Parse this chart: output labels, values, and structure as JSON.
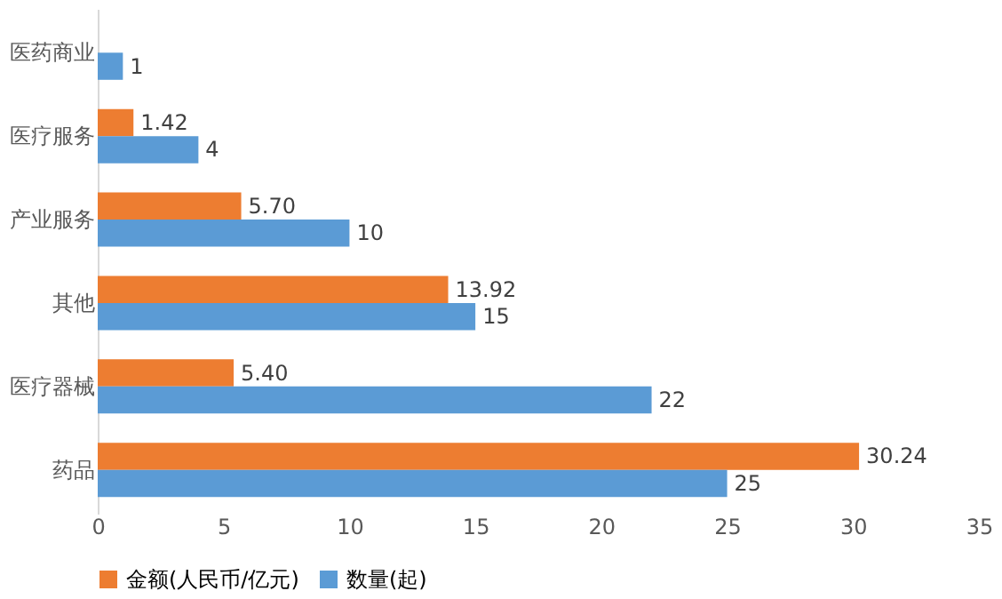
{
  "chart_data": {
    "type": "bar",
    "orientation": "horizontal",
    "categories": [
      "医药商业",
      "医疗服务",
      "产业服务",
      "其他",
      "医疗器械",
      "药品"
    ],
    "series": [
      {
        "name": "金额(人民币/亿元)",
        "color": "#ed7d31",
        "values": [
          null,
          1.42,
          5.7,
          13.92,
          5.4,
          30.24
        ],
        "value_labels": [
          null,
          "1.42",
          "5.70",
          "13.92",
          "5.40",
          "30.24"
        ]
      },
      {
        "name": "数量(起)",
        "color": "#5b9bd5",
        "values": [
          1,
          4,
          10,
          15,
          22,
          25
        ],
        "value_labels": [
          "1",
          "4",
          "10",
          "15",
          "22",
          "25"
        ]
      }
    ],
    "xlim": [
      0,
      35
    ],
    "xticks": [
      0,
      5,
      10,
      15,
      20,
      25,
      30,
      35
    ],
    "grid": false,
    "legend": "bottom"
  }
}
